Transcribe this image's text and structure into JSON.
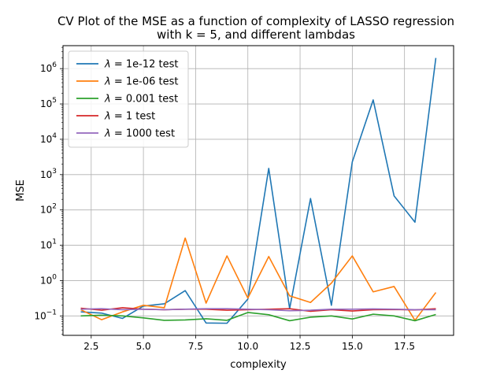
{
  "chart_data": {
    "type": "line",
    "title_line1": "CV Plot of the MSE as a function of complexity of LASSO regression",
    "title_line2": "with k = 5, and different lambdas",
    "xlabel": "complexity",
    "ylabel": "MSE",
    "xlim": [
      1.15,
      19.85
    ],
    "ylim_log10": [
      -1.55,
      6.65
    ],
    "yscale": "log",
    "grid": true,
    "legend_position": "top-left",
    "x_ticks": [
      2.5,
      5.0,
      7.5,
      10.0,
      12.5,
      15.0,
      17.5
    ],
    "x_tick_labels": [
      "2.5",
      "5.0",
      "7.5",
      "10.0",
      "12.5",
      "15.0",
      "17.5"
    ],
    "y_tick_exponents": [
      -1,
      0,
      1,
      2,
      3,
      4,
      5,
      6
    ],
    "x": [
      2,
      3,
      4,
      5,
      6,
      7,
      8,
      9,
      10,
      11,
      12,
      13,
      14,
      15,
      16,
      17,
      18,
      19
    ],
    "series": [
      {
        "name": "1e-12 test",
        "color": "#1f77b4",
        "values": [
          0.13,
          0.12,
          0.085,
          0.19,
          0.22,
          0.52,
          0.063,
          0.062,
          0.3,
          1500,
          0.16,
          210,
          0.2,
          2300,
          130000,
          250,
          45,
          2000000
        ]
      },
      {
        "name": "1e-06 test",
        "color": "#ff7f0e",
        "values": [
          0.15,
          0.078,
          0.13,
          0.2,
          0.17,
          16,
          0.23,
          5.0,
          0.32,
          4.8,
          0.37,
          0.24,
          0.85,
          5.0,
          0.48,
          0.68,
          0.075,
          0.46
        ]
      },
      {
        "name": "0.001 test",
        "color": "#2ca02c",
        "values": [
          0.1,
          0.105,
          0.1,
          0.088,
          0.075,
          0.077,
          0.083,
          0.075,
          0.125,
          0.108,
          0.073,
          0.092,
          0.1,
          0.082,
          0.112,
          0.1,
          0.073,
          0.11
        ]
      },
      {
        "name": "1 test",
        "color": "#d62728",
        "values": [
          0.165,
          0.145,
          0.17,
          0.155,
          0.15,
          0.155,
          0.155,
          0.145,
          0.15,
          0.155,
          0.16,
          0.135,
          0.15,
          0.138,
          0.15,
          0.152,
          0.148,
          0.16
        ]
      },
      {
        "name": "1000 test",
        "color": "#9467bd",
        "values": [
          0.155,
          0.16,
          0.15,
          0.155,
          0.15,
          0.155,
          0.16,
          0.16,
          0.155,
          0.15,
          0.14,
          0.145,
          0.155,
          0.155,
          0.158,
          0.155,
          0.15,
          0.15
        ]
      }
    ]
  }
}
